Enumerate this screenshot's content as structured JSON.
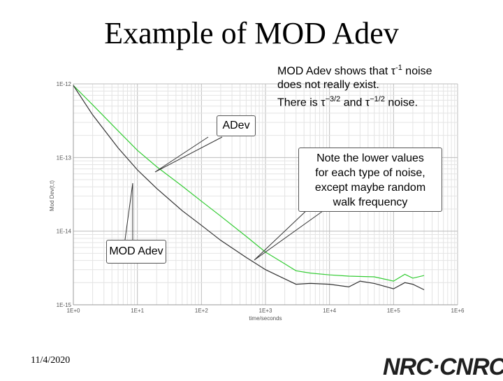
{
  "slide": {
    "title": "Example of MOD Adev",
    "date": "11/4/2020",
    "logo_text": "NRC·CNRC",
    "note_lines": [
      {
        "pre": "MOD Adev shows that ",
        "tau": "τ",
        "sup": "-1",
        "post": " noise"
      },
      {
        "pre": "does not really exist.",
        "tau": "",
        "sup": "",
        "post": ""
      },
      {
        "pre": "There is ",
        "tau": "τ",
        "sup": "−3/2",
        "post": " and "
      },
      {
        "pre": "",
        "tau": "τ",
        "sup": "−1/2",
        "post": " noise."
      }
    ]
  },
  "callouts": {
    "adev": "ADev",
    "modadev": "MOD Adev",
    "note": [
      "Note the lower values",
      "for each type of noise,",
      "except maybe random",
      "walk frequency"
    ]
  },
  "chart_data": {
    "type": "line",
    "xlabel": "time/seconds",
    "ylabel": "Mod Dev(t,t)",
    "x_scale": "log",
    "y_scale": "log",
    "xlim": [
      1,
      1000000
    ],
    "ylim": [
      1e-15,
      1e-12
    ],
    "x_ticks": [
      "1E+0",
      "1E+1",
      "1E+2",
      "1E+3",
      "1E+4",
      "1E+5",
      "1E+6"
    ],
    "y_ticks": [
      "1E-12",
      "1E-13",
      "1E-14",
      "1E-15"
    ],
    "grid": true,
    "series": [
      {
        "label": "ADev",
        "color": "#33cc33",
        "points": [
          [
            1,
            9.5e-13
          ],
          [
            2,
            5.2e-13
          ],
          [
            5,
            2.3e-13
          ],
          [
            10,
            1.25e-13
          ],
          [
            20,
            7.5e-14
          ],
          [
            50,
            4.1e-14
          ],
          [
            100,
            2.55e-14
          ],
          [
            200,
            1.6e-14
          ],
          [
            500,
            8.5e-15
          ],
          [
            1000,
            5.2e-15
          ],
          [
            2000,
            3.6e-15
          ],
          [
            3000,
            2.9e-15
          ],
          [
            5000,
            2.7e-15
          ],
          [
            10000,
            2.55e-15
          ],
          [
            20000,
            2.45e-15
          ],
          [
            50000,
            2.4e-15
          ],
          [
            100000,
            2.1e-15
          ],
          [
            150000,
            2.6e-15
          ],
          [
            200000,
            2.3e-15
          ],
          [
            300000,
            2.5e-15
          ]
        ]
      },
      {
        "label": "MOD Adev",
        "color": "#333333",
        "points": [
          [
            1,
            9.5e-13
          ],
          [
            2,
            3.8e-13
          ],
          [
            5,
            1.35e-13
          ],
          [
            10,
            6.8e-14
          ],
          [
            20,
            3.8e-14
          ],
          [
            50,
            1.9e-14
          ],
          [
            100,
            1.2e-14
          ],
          [
            200,
            7.5e-15
          ],
          [
            500,
            4.4e-15
          ],
          [
            1000,
            3e-15
          ],
          [
            2000,
            2.25e-15
          ],
          [
            3000,
            1.9e-15
          ],
          [
            5000,
            1.95e-15
          ],
          [
            10000,
            1.9e-15
          ],
          [
            20000,
            1.75e-15
          ],
          [
            30000,
            2.1e-15
          ],
          [
            50000,
            1.95e-15
          ],
          [
            100000,
            1.65e-15
          ],
          [
            150000,
            2e-15
          ],
          [
            200000,
            1.9e-15
          ],
          [
            300000,
            1.6e-15
          ]
        ]
      }
    ]
  }
}
